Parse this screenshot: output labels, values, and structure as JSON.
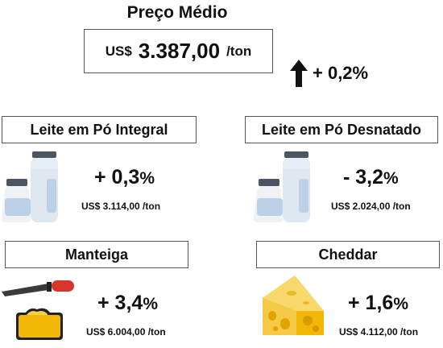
{
  "header": {
    "title": "Preço Médio",
    "currency": "US$",
    "value": "3.387,00",
    "unit": "/ton",
    "change": "+ 0,2",
    "change_symbol": "%",
    "direction": "up"
  },
  "products": [
    {
      "name": "Leite em Pó Integral",
      "change": "+ 0,3",
      "change_symbol": "%",
      "price": "US$  3.114,00 /ton",
      "icon": "milk-bottles-icon"
    },
    {
      "name": "Leite em Pó Desnatado",
      "change": "- 3,2",
      "change_symbol": "%",
      "price": "US$  2.024,00 /ton",
      "icon": "milk-bottles-icon"
    },
    {
      "name": "Manteiga",
      "change": "+ 3,4",
      "change_symbol": "%",
      "price": "US$  6.004,00 /ton",
      "icon": "butter-icon"
    },
    {
      "name": "Cheddar",
      "change": "+ 1,6",
      "change_symbol": "%",
      "price": "US$  4.112,00 /ton",
      "icon": "cheese-icon"
    }
  ],
  "colors": {
    "bottle_body": "#dfe7f0",
    "bottle_label": "#bcd0e8",
    "bottle_cap": "#4b5563",
    "butter": "#f2b705",
    "cheese": "#f7c948",
    "knife_handle": "#d9342b"
  }
}
